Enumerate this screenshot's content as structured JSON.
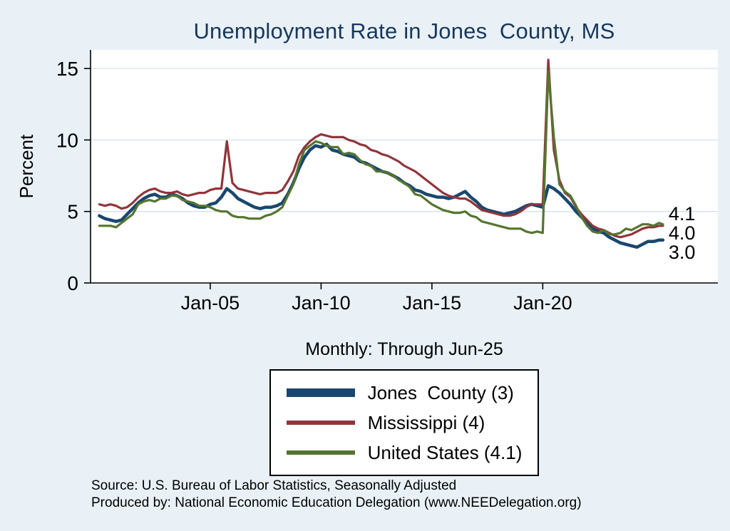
{
  "page": {
    "background": "#e9f1f6",
    "title_color": "#17375e",
    "grid_color": "#d3e3ee",
    "axis_color": "#000000",
    "plot_bg": "#ffffff"
  },
  "chart_data": {
    "type": "line",
    "title": "Unemployment Rate in Jones  County, MS",
    "subtitle": "Monthly: Through Jun-25",
    "xlabel": "",
    "ylabel": "Percent",
    "grid": true,
    "legend_position": "bottom",
    "ylim": [
      0,
      16.3
    ],
    "xlim": [
      1999.6,
      2027.9
    ],
    "y_ticks": [
      0,
      5,
      10,
      15
    ],
    "x_ticks": [
      {
        "year": 2005,
        "label": "Jan-05"
      },
      {
        "year": 2010,
        "label": "Jan-10"
      },
      {
        "year": 2015,
        "label": "Jan-15"
      },
      {
        "year": 2020,
        "label": "Jan-20"
      }
    ],
    "x_years": [
      2000.0,
      2000.25,
      2000.5,
      2000.75,
      2001.0,
      2001.25,
      2001.5,
      2001.75,
      2002.0,
      2002.25,
      2002.5,
      2002.75,
      2003.0,
      2003.25,
      2003.5,
      2003.75,
      2004.0,
      2004.25,
      2004.5,
      2004.75,
      2005.0,
      2005.25,
      2005.5,
      2005.75,
      2006.0,
      2006.25,
      2006.5,
      2006.75,
      2007.0,
      2007.25,
      2007.5,
      2007.75,
      2008.0,
      2008.25,
      2008.5,
      2008.75,
      2009.0,
      2009.25,
      2009.5,
      2009.75,
      2010.0,
      2010.25,
      2010.5,
      2010.75,
      2011.0,
      2011.25,
      2011.5,
      2011.75,
      2012.0,
      2012.25,
      2012.5,
      2012.75,
      2013.0,
      2013.25,
      2013.5,
      2013.75,
      2014.0,
      2014.25,
      2014.5,
      2014.75,
      2015.0,
      2015.25,
      2015.5,
      2015.75,
      2016.0,
      2016.25,
      2016.5,
      2016.75,
      2017.0,
      2017.25,
      2017.5,
      2017.75,
      2018.0,
      2018.25,
      2018.5,
      2018.75,
      2019.0,
      2019.25,
      2019.5,
      2019.75,
      2020.0,
      2020.25,
      2020.5,
      2020.75,
      2021.0,
      2021.25,
      2021.5,
      2021.75,
      2022.0,
      2022.25,
      2022.5,
      2022.75,
      2023.0,
      2023.25,
      2023.5,
      2023.75,
      2024.0,
      2024.25,
      2024.5,
      2024.75,
      2025.0,
      2025.25,
      2025.42
    ],
    "series": [
      {
        "name": "Jones  County (3)",
        "color": "#1a476f",
        "line_width": 4.5,
        "end_label": "3.0",
        "values": [
          4.7,
          4.5,
          4.4,
          4.3,
          4.4,
          4.8,
          5.2,
          5.6,
          5.9,
          6.1,
          6.2,
          6.0,
          6.0,
          6.2,
          6.1,
          5.9,
          5.6,
          5.4,
          5.3,
          5.3,
          5.5,
          5.6,
          6.0,
          6.6,
          6.3,
          5.9,
          5.7,
          5.5,
          5.3,
          5.2,
          5.3,
          5.3,
          5.4,
          5.6,
          6.2,
          7.0,
          8.0,
          8.8,
          9.3,
          9.6,
          9.5,
          9.7,
          9.3,
          9.2,
          9.0,
          8.9,
          8.8,
          8.5,
          8.4,
          8.2,
          8.0,
          7.8,
          7.7,
          7.5,
          7.3,
          7.0,
          6.8,
          6.5,
          6.4,
          6.2,
          6.1,
          6.0,
          6.0,
          5.9,
          6.0,
          6.2,
          6.4,
          6.0,
          5.7,
          5.3,
          5.1,
          5.0,
          4.9,
          4.8,
          4.9,
          5.0,
          5.2,
          5.4,
          5.5,
          5.4,
          5.3,
          6.8,
          6.6,
          6.3,
          5.9,
          5.5,
          5.0,
          4.6,
          4.2,
          3.8,
          3.6,
          3.5,
          3.2,
          3.0,
          2.8,
          2.7,
          2.6,
          2.5,
          2.7,
          2.9,
          2.9,
          3.0,
          3.0
        ]
      },
      {
        "name": "Mississippi (4)",
        "color": "#90353b",
        "line_width": 3.2,
        "end_label": "4.0",
        "values": [
          5.5,
          5.4,
          5.5,
          5.4,
          5.2,
          5.3,
          5.6,
          6.0,
          6.3,
          6.5,
          6.6,
          6.4,
          6.3,
          6.3,
          6.4,
          6.2,
          6.1,
          6.2,
          6.3,
          6.3,
          6.5,
          6.6,
          6.6,
          9.9,
          7.0,
          6.6,
          6.5,
          6.4,
          6.3,
          6.2,
          6.3,
          6.3,
          6.3,
          6.5,
          7.1,
          7.8,
          8.9,
          9.5,
          9.9,
          10.2,
          10.4,
          10.3,
          10.2,
          10.2,
          10.2,
          10.0,
          9.9,
          9.7,
          9.6,
          9.3,
          9.2,
          9.0,
          8.9,
          8.7,
          8.5,
          8.2,
          8.0,
          7.8,
          7.5,
          7.2,
          6.9,
          6.6,
          6.3,
          6.1,
          6.0,
          5.9,
          5.9,
          5.7,
          5.4,
          5.1,
          5.0,
          4.9,
          4.8,
          4.7,
          4.7,
          4.8,
          5.0,
          5.3,
          5.5,
          5.5,
          5.5,
          15.6,
          9.3,
          7.2,
          6.3,
          6.0,
          5.3,
          4.8,
          4.4,
          4.0,
          3.8,
          3.7,
          3.5,
          3.3,
          3.2,
          3.3,
          3.4,
          3.6,
          3.8,
          3.9,
          3.9,
          4.0,
          4.0
        ]
      },
      {
        "name": "United States (4.1)",
        "color": "#55752f",
        "line_width": 3.2,
        "end_label": "4.1",
        "values": [
          4.0,
          4.0,
          4.0,
          3.9,
          4.2,
          4.5,
          4.8,
          5.5,
          5.7,
          5.8,
          5.7,
          5.9,
          5.9,
          6.1,
          6.1,
          5.8,
          5.7,
          5.6,
          5.4,
          5.4,
          5.3,
          5.1,
          5.0,
          5.0,
          4.7,
          4.6,
          4.6,
          4.5,
          4.5,
          4.5,
          4.7,
          4.8,
          5.0,
          5.3,
          6.1,
          6.9,
          8.3,
          9.3,
          9.6,
          9.9,
          9.8,
          9.6,
          9.5,
          9.5,
          9.0,
          9.1,
          9.0,
          8.6,
          8.3,
          8.2,
          7.8,
          7.8,
          7.7,
          7.5,
          7.2,
          7.0,
          6.7,
          6.2,
          6.1,
          5.8,
          5.5,
          5.3,
          5.1,
          5.0,
          4.9,
          4.9,
          5.0,
          4.7,
          4.6,
          4.3,
          4.2,
          4.1,
          4.0,
          3.9,
          3.8,
          3.8,
          3.8,
          3.6,
          3.5,
          3.6,
          3.5,
          14.8,
          10.2,
          6.9,
          6.4,
          6.1,
          5.4,
          4.6,
          4.0,
          3.6,
          3.5,
          3.7,
          3.4,
          3.4,
          3.5,
          3.8,
          3.7,
          3.9,
          4.1,
          4.1,
          4.0,
          4.2,
          4.1
        ]
      }
    ]
  },
  "notes": {
    "line1": "Source: U.S. Bureau of Labor Statistics, Seasonally Adjusted",
    "line2": "Produced by: National Economic Education Delegation (www.NEEDelegation.org)"
  }
}
